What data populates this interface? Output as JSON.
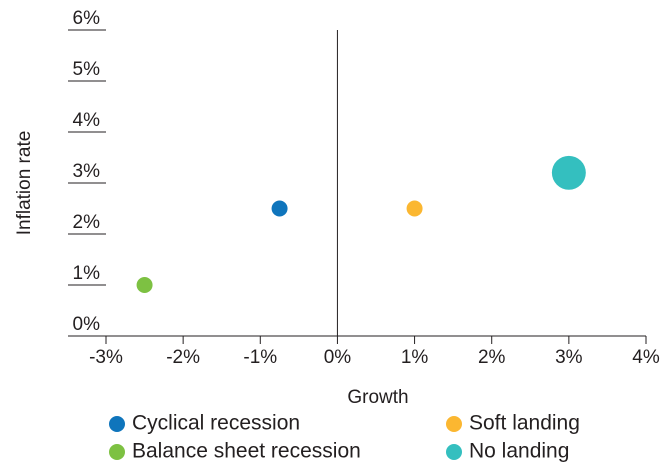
{
  "chart_data": {
    "type": "bubble",
    "x_label": "Growth",
    "y_label": "Inflation rate",
    "xlim": [
      -3,
      4
    ],
    "xticks": [
      {
        "value": -3,
        "label": "-3%"
      },
      {
        "value": -2,
        "label": "-2%"
      },
      {
        "value": -1,
        "label": "-1%"
      },
      {
        "value": 0,
        "label": "0%"
      },
      {
        "value": 1,
        "label": "1%"
      },
      {
        "value": 2,
        "label": "2%"
      },
      {
        "value": 3,
        "label": "3%"
      },
      {
        "value": 4,
        "label": "4%"
      }
    ],
    "ylim": [
      0,
      6
    ],
    "yticks": [
      {
        "value": 0,
        "label": "0%"
      },
      {
        "value": 1,
        "label": "1%"
      },
      {
        "value": 2,
        "label": "2%"
      },
      {
        "value": 3,
        "label": "3%"
      },
      {
        "value": 4,
        "label": "4%"
      },
      {
        "value": 5,
        "label": "5%"
      },
      {
        "value": 6,
        "label": "6%"
      }
    ],
    "series": [
      {
        "name": "Cyclical recession",
        "color": "#0f75bc",
        "x": [
          -0.75
        ],
        "values": [
          2.5
        ],
        "sizes": [
          1
        ]
      },
      {
        "name": "Soft landing",
        "color": "#fbb731",
        "x": [
          1
        ],
        "values": [
          2.5
        ],
        "sizes": [
          1
        ]
      },
      {
        "name": "Balance sheet recession",
        "color": "#7dc142",
        "x": [
          -2.5
        ],
        "values": [
          1
        ],
        "sizes": [
          1
        ]
      },
      {
        "name": "No landing",
        "color": "#34bfbf",
        "x": [
          3
        ],
        "values": [
          3.2
        ],
        "sizes": [
          4.5
        ]
      }
    ]
  }
}
